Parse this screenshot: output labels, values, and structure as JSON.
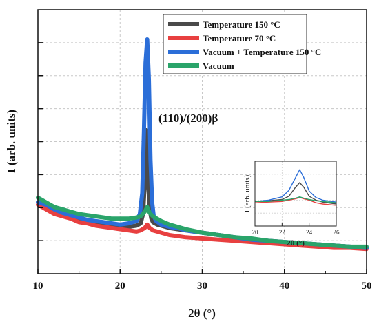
{
  "chart_data": [
    {
      "type": "line",
      "xlabel": "2θ (°)",
      "ylabel": "I (arb. units)",
      "xlim": [
        10,
        50
      ],
      "xticks": [
        10,
        20,
        30,
        40,
        50
      ],
      "ylim": [
        0,
        100
      ],
      "grid": true,
      "legend_position": "top-right",
      "annotation": "(110)/(200)β",
      "series": [
        {
          "name": "Temperature 150 °C",
          "color": "#4a4a4a",
          "x": [
            10,
            11,
            12,
            13,
            14,
            15,
            16,
            17,
            18,
            19,
            20,
            21,
            22,
            22.5,
            22.8,
            23.0,
            23.2,
            23.4,
            23.6,
            23.8,
            24.0,
            24.5,
            25,
            26,
            27,
            28,
            30,
            32,
            34,
            36,
            38,
            40,
            42,
            44,
            46,
            48,
            50
          ],
          "y": [
            22,
            20,
            18,
            17,
            16,
            15,
            14,
            13.5,
            12.5,
            11.5,
            11,
            11.5,
            12,
            13,
            17,
            30,
            53,
            32,
            19,
            15,
            13.5,
            12.5,
            12,
            11,
            10.5,
            10,
            9,
            8,
            7,
            6,
            5.5,
            5,
            4.5,
            4,
            3.5,
            3,
            2.5
          ]
        },
        {
          "name": "Temperature 70 °C",
          "color": "#e84040",
          "x": [
            10,
            11,
            12,
            13,
            14,
            15,
            16,
            17,
            18,
            19,
            20,
            21,
            22,
            22.5,
            23.0,
            23.3,
            23.6,
            24.0,
            24.5,
            25,
            26,
            27,
            28,
            30,
            32,
            34,
            36,
            38,
            40,
            42,
            44,
            46,
            48,
            50
          ],
          "y": [
            21,
            19,
            17,
            16,
            15,
            13.5,
            13,
            12,
            11.5,
            11,
            10.5,
            10,
            9.5,
            10,
            11,
            12.5,
            11,
            10,
            9.5,
            9,
            8,
            7.5,
            7,
            6.5,
            6,
            5.5,
            5,
            4.5,
            4,
            3.5,
            3,
            2.5,
            2.5,
            2
          ]
        },
        {
          "name": "Vacuum + Temperature 150 °C",
          "color": "#2b6ed8",
          "x": [
            10,
            11,
            12,
            13,
            14,
            15,
            16,
            17,
            18,
            19,
            20,
            21,
            22,
            22.4,
            22.7,
            22.9,
            23.1,
            23.3,
            23.5,
            23.7,
            23.9,
            24.1,
            24.4,
            25,
            26,
            27,
            28,
            30,
            32,
            34,
            36,
            38,
            40,
            42,
            44,
            46,
            48,
            50
          ],
          "y": [
            22,
            21,
            19,
            17.5,
            16.5,
            15.5,
            14.5,
            14,
            13.5,
            13,
            12.5,
            13,
            14,
            17,
            26,
            52,
            82,
            92,
            75,
            40,
            22,
            16,
            14,
            12.5,
            11.5,
            11,
            10,
            9,
            8,
            7,
            6,
            5.5,
            5,
            4.5,
            4,
            3.5,
            3,
            2.5
          ]
        },
        {
          "name": "Vacuum",
          "color": "#2aa46a",
          "x": [
            10,
            11,
            12,
            13,
            14,
            15,
            16,
            17,
            18,
            19,
            20,
            21,
            22,
            22.5,
            23.0,
            23.3,
            23.6,
            24.0,
            24.5,
            25,
            26,
            27,
            28,
            30,
            32,
            34,
            36,
            38,
            40,
            42,
            44,
            46,
            48,
            50
          ],
          "y": [
            24,
            22,
            20,
            19,
            18,
            17,
            16.5,
            16,
            15.5,
            15,
            15,
            15,
            15.5,
            16,
            18,
            20,
            17.5,
            16,
            15,
            14,
            12.5,
            11.5,
            10.5,
            9,
            8,
            7,
            6.5,
            5.5,
            5,
            4.5,
            4,
            3.5,
            3,
            3
          ]
        }
      ]
    },
    {
      "type": "line",
      "xlabel": "2θ (°)",
      "ylabel": "I (arb. units)",
      "xlim": [
        20,
        26
      ],
      "xticks": [
        20,
        22,
        24,
        26
      ],
      "ylim": [
        0,
        100
      ],
      "grid": true,
      "series": [
        {
          "name": "Temperature 150 °C",
          "color": "#4a4a4a",
          "x": [
            20,
            21,
            22,
            22.5,
            23.0,
            23.3,
            23.6,
            24,
            24.5,
            25,
            26
          ],
          "y": [
            38,
            39,
            41,
            46,
            60,
            67,
            60,
            46,
            40,
            37,
            34
          ]
        },
        {
          "name": "Temperature 70 °C",
          "color": "#e84040",
          "x": [
            20,
            21,
            22,
            22.5,
            23.0,
            23.3,
            23.6,
            24,
            24.5,
            25,
            26
          ],
          "y": [
            36,
            37,
            38,
            40,
            42,
            44,
            42,
            40,
            36,
            34,
            32
          ]
        },
        {
          "name": "Vacuum + Temperature 150 °C",
          "color": "#2b6ed8",
          "x": [
            20,
            21,
            22,
            22.5,
            23.0,
            23.3,
            23.6,
            24,
            24.5,
            25,
            26
          ],
          "y": [
            38,
            40,
            45,
            55,
            75,
            87,
            75,
            54,
            44,
            40,
            37
          ]
        },
        {
          "name": "Vacuum",
          "color": "#2aa46a",
          "x": [
            20,
            21,
            22,
            22.5,
            23.0,
            23.3,
            23.6,
            24,
            24.5,
            25,
            26
          ],
          "y": [
            38,
            38,
            40,
            41,
            43,
            45,
            43,
            41,
            39,
            38,
            36
          ]
        }
      ]
    }
  ]
}
